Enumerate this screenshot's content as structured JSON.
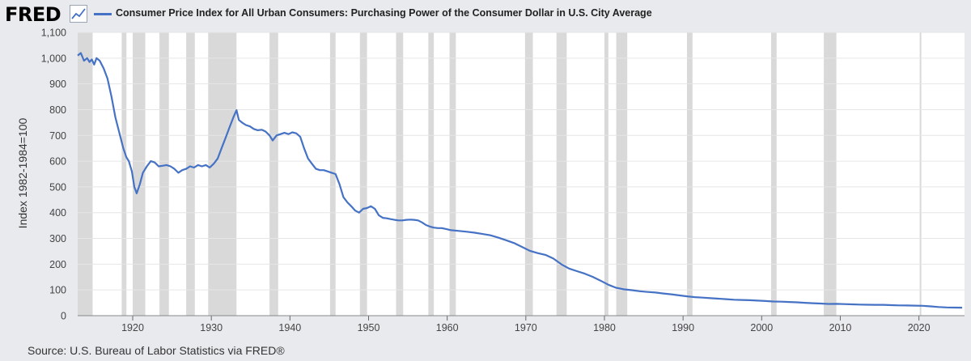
{
  "header": {
    "logo": "FRED",
    "logo_icon": "trend-line-icon",
    "legend_label": "Consumer Price Index for All Urban Consumers: Purchasing Power of the Consumer Dollar in U.S. City Average"
  },
  "footer": {
    "source": "Source: U.S. Bureau of Labor Statistics via FRED®"
  },
  "colors": {
    "line": "#4572c4",
    "recession": "#d9d9d9",
    "plot_background": "#ffffff",
    "gridline": "#e6e6e6"
  },
  "chart_data": {
    "type": "line",
    "title": "",
    "ylabel": "Index 1982-1984=100",
    "xlabel": "",
    "xlim": [
      1913,
      2025.8
    ],
    "ylim": [
      0,
      1100
    ],
    "x_ticks": [
      1920,
      1930,
      1940,
      1950,
      1960,
      1970,
      1980,
      1990,
      2000,
      2010,
      2020
    ],
    "y_ticks": [
      "0",
      "100",
      "200",
      "300",
      "400",
      "500",
      "600",
      "700",
      "800",
      "900",
      "1,000",
      "1,100"
    ],
    "grid": true,
    "legend_position": "top",
    "series": [
      {
        "name": "Consumer Price Index for All Urban Consumers: Purchasing Power of the Consumer Dollar in U.S. City Average",
        "points": [
          [
            1913.0,
            1010
          ],
          [
            1913.4,
            1020
          ],
          [
            1913.8,
            990
          ],
          [
            1914.2,
            1000
          ],
          [
            1914.5,
            985
          ],
          [
            1914.8,
            995
          ],
          [
            1915.1,
            975
          ],
          [
            1915.4,
            1000
          ],
          [
            1915.8,
            990
          ],
          [
            1916.3,
            960
          ],
          [
            1916.8,
            920
          ],
          [
            1917.3,
            850
          ],
          [
            1917.8,
            770
          ],
          [
            1918.3,
            710
          ],
          [
            1918.8,
            650
          ],
          [
            1919.2,
            615
          ],
          [
            1919.5,
            600
          ],
          [
            1919.9,
            560
          ],
          [
            1920.2,
            500
          ],
          [
            1920.5,
            475
          ],
          [
            1920.9,
            510
          ],
          [
            1921.3,
            555
          ],
          [
            1921.8,
            580
          ],
          [
            1922.3,
            600
          ],
          [
            1922.8,
            595
          ],
          [
            1923.3,
            580
          ],
          [
            1923.8,
            582
          ],
          [
            1924.3,
            585
          ],
          [
            1924.8,
            580
          ],
          [
            1925.3,
            570
          ],
          [
            1925.8,
            555
          ],
          [
            1926.3,
            565
          ],
          [
            1926.8,
            570
          ],
          [
            1927.3,
            580
          ],
          [
            1927.8,
            575
          ],
          [
            1928.3,
            585
          ],
          [
            1928.8,
            580
          ],
          [
            1929.3,
            585
          ],
          [
            1929.8,
            575
          ],
          [
            1930.3,
            590
          ],
          [
            1930.8,
            610
          ],
          [
            1931.3,
            650
          ],
          [
            1931.8,
            690
          ],
          [
            1932.3,
            730
          ],
          [
            1932.8,
            770
          ],
          [
            1933.2,
            798
          ],
          [
            1933.5,
            760
          ],
          [
            1933.9,
            750
          ],
          [
            1934.4,
            740
          ],
          [
            1934.9,
            735
          ],
          [
            1935.4,
            725
          ],
          [
            1935.9,
            720
          ],
          [
            1936.4,
            722
          ],
          [
            1936.9,
            715
          ],
          [
            1937.4,
            700
          ],
          [
            1937.8,
            680
          ],
          [
            1938.3,
            700
          ],
          [
            1938.8,
            705
          ],
          [
            1939.3,
            710
          ],
          [
            1939.8,
            705
          ],
          [
            1940.3,
            712
          ],
          [
            1940.8,
            708
          ],
          [
            1941.3,
            695
          ],
          [
            1941.8,
            650
          ],
          [
            1942.3,
            610
          ],
          [
            1942.8,
            590
          ],
          [
            1943.3,
            570
          ],
          [
            1943.8,
            565
          ],
          [
            1944.3,
            565
          ],
          [
            1944.8,
            560
          ],
          [
            1945.3,
            555
          ],
          [
            1945.8,
            550
          ],
          [
            1946.3,
            510
          ],
          [
            1946.8,
            460
          ],
          [
            1947.3,
            440
          ],
          [
            1947.8,
            425
          ],
          [
            1948.3,
            408
          ],
          [
            1948.8,
            400
          ],
          [
            1949.3,
            415
          ],
          [
            1949.8,
            418
          ],
          [
            1950.3,
            425
          ],
          [
            1950.8,
            415
          ],
          [
            1951.3,
            390
          ],
          [
            1951.8,
            380
          ],
          [
            1952.3,
            378
          ],
          [
            1952.8,
            375
          ],
          [
            1953.3,
            372
          ],
          [
            1953.8,
            370
          ],
          [
            1954.3,
            370
          ],
          [
            1954.8,
            372
          ],
          [
            1955.3,
            373
          ],
          [
            1955.8,
            372
          ],
          [
            1956.3,
            370
          ],
          [
            1956.8,
            362
          ],
          [
            1957.3,
            352
          ],
          [
            1957.8,
            346
          ],
          [
            1958.3,
            342
          ],
          [
            1958.8,
            340
          ],
          [
            1959.3,
            340
          ],
          [
            1959.8,
            337
          ],
          [
            1960.5,
            332
          ],
          [
            1961.5,
            329
          ],
          [
            1962.5,
            326
          ],
          [
            1963.5,
            322
          ],
          [
            1964.5,
            317
          ],
          [
            1965.5,
            312
          ],
          [
            1966.5,
            303
          ],
          [
            1967.5,
            293
          ],
          [
            1968.5,
            282
          ],
          [
            1969.5,
            267
          ],
          [
            1970.5,
            252
          ],
          [
            1971.5,
            243
          ],
          [
            1972.5,
            236
          ],
          [
            1973.5,
            222
          ],
          [
            1974.5,
            200
          ],
          [
            1975.5,
            183
          ],
          [
            1976.5,
            173
          ],
          [
            1977.5,
            163
          ],
          [
            1978.5,
            151
          ],
          [
            1979.5,
            136
          ],
          [
            1980.5,
            120
          ],
          [
            1981.5,
            108
          ],
          [
            1982.5,
            102
          ],
          [
            1983.5,
            99
          ],
          [
            1984.5,
            95
          ],
          [
            1985.5,
            92
          ],
          [
            1986.5,
            90
          ],
          [
            1987.5,
            86
          ],
          [
            1988.5,
            83
          ],
          [
            1989.5,
            79
          ],
          [
            1990.5,
            75
          ],
          [
            1991.5,
            72
          ],
          [
            1992.5,
            70
          ],
          [
            1993.5,
            68
          ],
          [
            1994.5,
            66
          ],
          [
            1995.5,
            64
          ],
          [
            1996.5,
            62
          ],
          [
            1997.5,
            61
          ],
          [
            1998.5,
            60
          ],
          [
            1999.5,
            58.5
          ],
          [
            2000.5,
            57
          ],
          [
            2001.5,
            55
          ],
          [
            2002.5,
            54.5
          ],
          [
            2003.5,
            53
          ],
          [
            2004.5,
            52
          ],
          [
            2005.5,
            50
          ],
          [
            2006.5,
            48.5
          ],
          [
            2007.5,
            47
          ],
          [
            2008.5,
            45.5
          ],
          [
            2009.5,
            46
          ],
          [
            2010.5,
            45
          ],
          [
            2011.5,
            44
          ],
          [
            2012.5,
            43
          ],
          [
            2013.5,
            42.5
          ],
          [
            2014.5,
            42
          ],
          [
            2015.5,
            42
          ],
          [
            2016.5,
            41
          ],
          [
            2017.5,
            40
          ],
          [
            2018.5,
            39.5
          ],
          [
            2019.5,
            39
          ],
          [
            2020.5,
            38.5
          ],
          [
            2021.5,
            36
          ],
          [
            2022.5,
            33.5
          ],
          [
            2023.5,
            32
          ],
          [
            2024.5,
            31.5
          ],
          [
            2025.5,
            31
          ]
        ]
      }
    ],
    "recessions": [
      [
        1913.0,
        1914.9
      ],
      [
        1918.6,
        1919.2
      ],
      [
        1920.0,
        1921.6
      ],
      [
        1923.4,
        1924.6
      ],
      [
        1926.8,
        1927.9
      ],
      [
        1929.6,
        1933.2
      ],
      [
        1937.4,
        1938.5
      ],
      [
        1945.1,
        1945.8
      ],
      [
        1948.9,
        1949.8
      ],
      [
        1953.5,
        1954.4
      ],
      [
        1957.6,
        1958.3
      ],
      [
        1960.3,
        1961.1
      ],
      [
        1969.9,
        1970.9
      ],
      [
        1973.9,
        1975.2
      ],
      [
        1980.0,
        1980.5
      ],
      [
        1981.5,
        1982.9
      ],
      [
        1990.5,
        1991.2
      ],
      [
        2001.2,
        2001.9
      ],
      [
        2007.9,
        2009.5
      ],
      [
        2020.1,
        2020.3
      ]
    ]
  }
}
